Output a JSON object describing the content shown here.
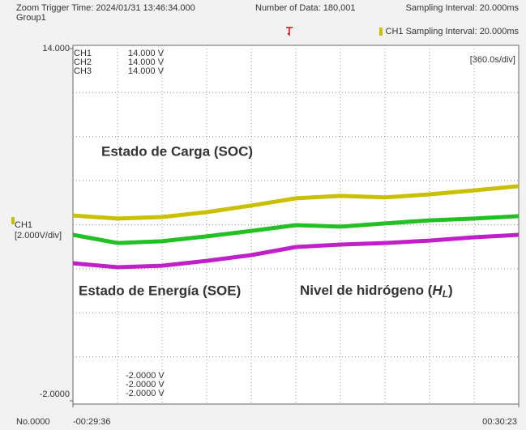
{
  "header": {
    "trigger": "Zoom Trigger Time: 2024/01/31 13:46:34.000",
    "group": "Group1",
    "count": "Number of Data: 180,001",
    "sampling": "Sampling Interval: 20.000ms",
    "ch1_sampling": "CH1 Sampling Interval: 20.000ms"
  },
  "chart_data": {
    "type": "line",
    "time_div": "[360.0s/div]",
    "volt_div_channel": "CH1",
    "volt_div": "[2.000V/div]",
    "record": "No.0000",
    "xdiv": 360,
    "ydiv": 2,
    "grid": true,
    "xlim": [
      -1776,
      1823
    ],
    "xticks": [
      {
        "value": -1776,
        "label": "-00:29:36"
      },
      {
        "value": 1823,
        "label": "00:30:23"
      }
    ],
    "ylim": [
      -2,
      14
    ],
    "yticks": [
      {
        "value": 14,
        "label": "14.000"
      },
      {
        "value": -2,
        "label": "-2.0000"
      }
    ],
    "x": [
      -1776,
      -1416,
      -1056,
      -696,
      -336,
      24,
      384,
      744,
      1104,
      1464,
      1823
    ],
    "series": [
      {
        "name": "CH1",
        "color": "#c8c000",
        "top_label": "14.000 V",
        "bottom_label": "-2.0000 V",
        "values": [
          6.42,
          6.28,
          6.35,
          6.57,
          6.87,
          7.2,
          7.31,
          7.24,
          7.38,
          7.56,
          7.75
        ]
      },
      {
        "name": "CH2",
        "color": "#22c022",
        "top_label": "14.000 V",
        "bottom_label": "-2.0000 V",
        "values": [
          5.54,
          5.17,
          5.25,
          5.47,
          5.72,
          5.98,
          5.91,
          6.06,
          6.2,
          6.28,
          6.39
        ]
      },
      {
        "name": "CH3",
        "color": "#c020c8",
        "top_label": "14.000 V",
        "bottom_label": "-2.0000 V",
        "values": [
          4.25,
          4.07,
          4.14,
          4.36,
          4.62,
          4.99,
          5.1,
          5.17,
          5.28,
          5.43,
          5.54
        ]
      }
    ],
    "annotations": [
      {
        "text": "Estado de Carga (SOC)",
        "color": "#c8c000"
      },
      {
        "text": "Estado de Energía (SOE)",
        "color": "#22c022"
      },
      {
        "parts": [
          "Nivel de hidrógeno (",
          "H",
          "L",
          ")"
        ],
        "color": "#c020c8"
      }
    ]
  }
}
